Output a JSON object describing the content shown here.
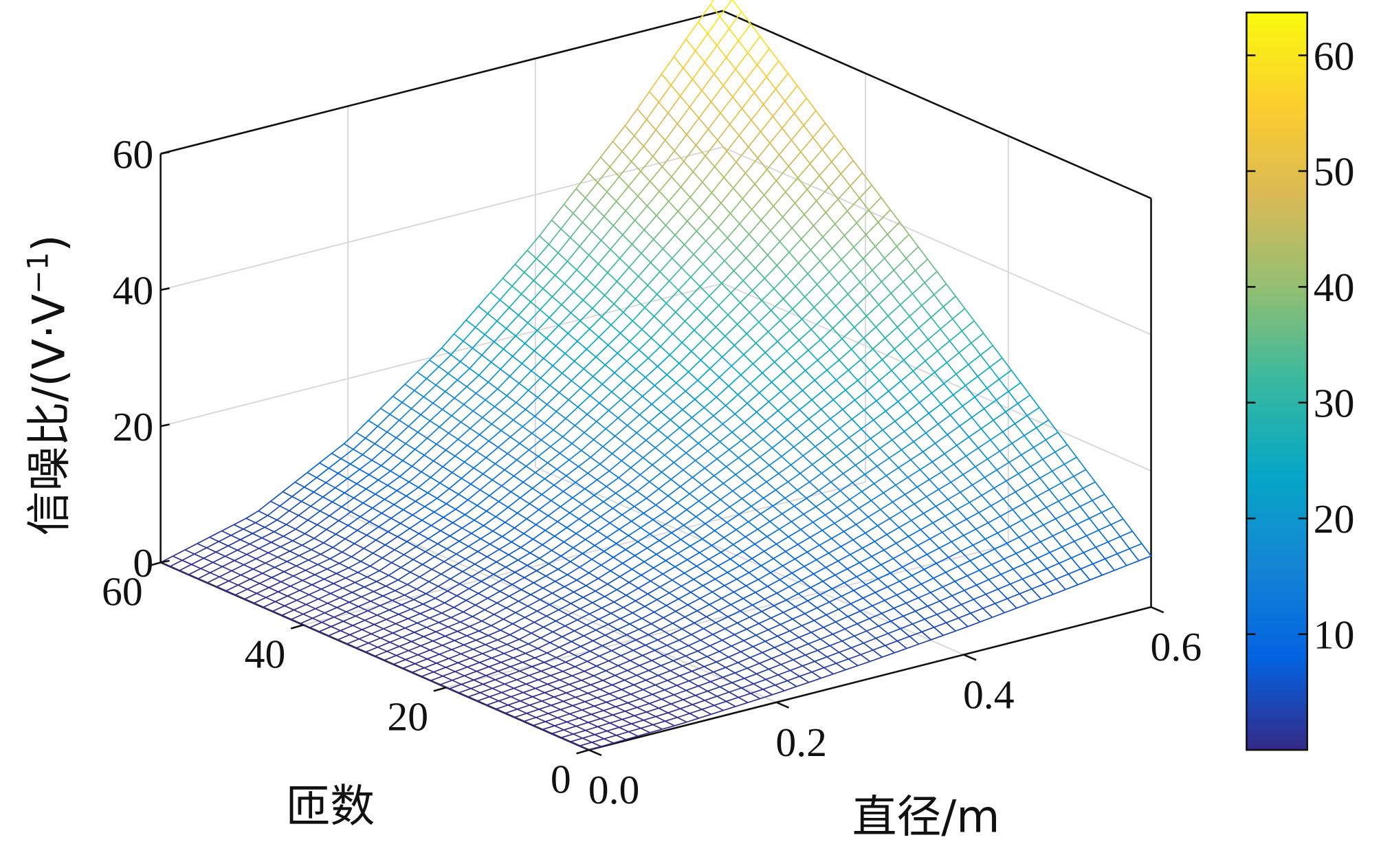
{
  "chart_data": {
    "type": "surface",
    "title": "",
    "xlabel": "直径/m",
    "ylabel": "匝数",
    "zlabel": "信噪比/(V·V",
    "zlabel_sup": "−1",
    "zlabel_close": ")",
    "xlim": [
      0,
      0.6
    ],
    "ylim": [
      0,
      60
    ],
    "zlim": [
      0,
      60
    ],
    "x_ticks": [
      "0.0",
      "0.2",
      "0.4",
      "0.6"
    ],
    "x_tick_values": [
      0,
      0.2,
      0.4,
      0.6
    ],
    "y_ticks": [
      "0",
      "20",
      "40",
      "60"
    ],
    "y_tick_values": [
      0,
      20,
      40,
      60
    ],
    "z_ticks": [
      "0",
      "20",
      "40",
      "60"
    ],
    "z_tick_values": [
      0,
      20,
      40,
      60
    ],
    "grid": true,
    "x_grid": [
      0,
      0.1,
      0.2,
      0.3,
      0.4,
      0.5,
      0.6
    ],
    "y_grid": [
      0,
      10,
      20,
      30,
      40,
      50,
      60
    ],
    "z_grid_values": [
      [
        0,
        0.4,
        1.3,
        2.5,
        3.9,
        5.6,
        7.5
      ],
      [
        0,
        1.0,
        2.9,
        5.6,
        8.8,
        12.6,
        16.8
      ],
      [
        0,
        1.5,
        4.5,
        8.7,
        13.7,
        19.5,
        26.2
      ],
      [
        0,
        2.0,
        6.1,
        11.7,
        18.6,
        26.5,
        35.5
      ],
      [
        0,
        2.5,
        7.7,
        14.8,
        23.4,
        33.5,
        44.8
      ],
      [
        0,
        3.1,
        9.3,
        17.9,
        28.3,
        40.4,
        54.2
      ],
      [
        0,
        3.6,
        10.9,
        21.0,
        33.2,
        47.4,
        63.5
      ]
    ],
    "colorbar": {
      "range": [
        0,
        63.7
      ],
      "ticks": [
        "10",
        "20",
        "30",
        "40",
        "50",
        "60"
      ],
      "tick_values": [
        10,
        20,
        30,
        40,
        50,
        60
      ],
      "colormap": [
        "#352a87",
        "#0363e1",
        "#1485d4",
        "#06a7c6",
        "#38b99e",
        "#92bf73",
        "#d9ba56",
        "#fcce2e",
        "#f9fb0e"
      ]
    }
  }
}
